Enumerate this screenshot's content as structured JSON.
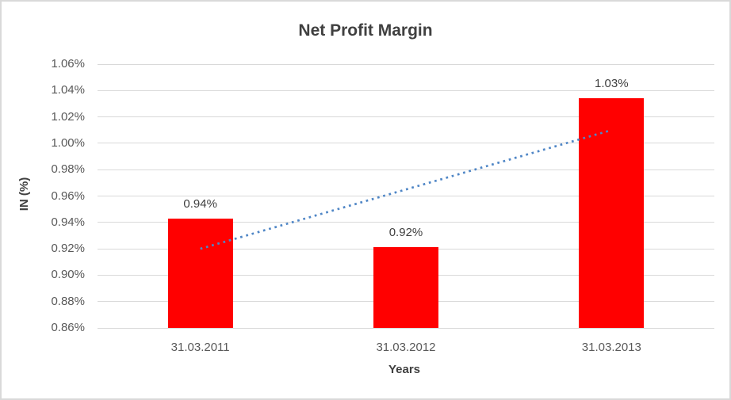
{
  "chart_data": {
    "type": "bar",
    "title": "Net Profit Margin",
    "xlabel": "Years",
    "ylabel": "IN (%)",
    "categories": [
      "31.03.2011",
      "31.03.2012",
      "31.03.2013"
    ],
    "values": [
      0.943,
      0.921,
      1.034
    ],
    "data_labels": [
      "0.94%",
      "0.92%",
      "1.03%"
    ],
    "ylim": [
      0.86,
      1.06
    ],
    "ytick_step": 0.02,
    "ytick_labels": [
      "0.86%",
      "0.88%",
      "0.90%",
      "0.92%",
      "0.94%",
      "0.96%",
      "0.98%",
      "1.00%",
      "1.02%",
      "1.04%",
      "1.06%"
    ],
    "grid": "horizontal",
    "legend": "none",
    "bar_color": "#ff0000",
    "trendline": {
      "style": "dotted",
      "color": "#4f86c6",
      "start_value": 0.92,
      "end_value": 1.01
    },
    "colors": {
      "title_text": "#404040",
      "axis_title_text": "#404040",
      "data_label_text": "#404040",
      "tick_label_text": "#595959",
      "gridline": "#d9d9d9",
      "frame_border": "#d9d9d9",
      "background": "#ffffff"
    }
  }
}
